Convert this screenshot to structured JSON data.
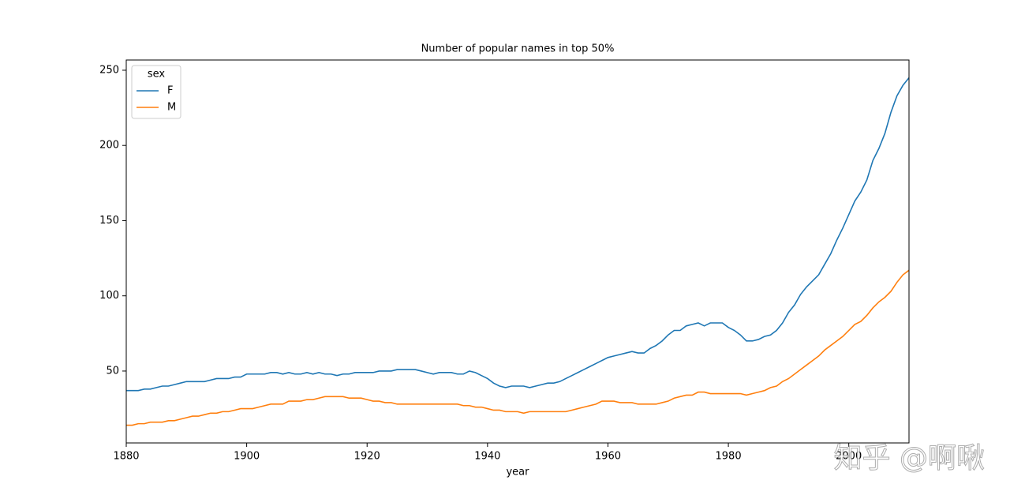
{
  "chart_data": {
    "type": "line",
    "title": "Number of popular names in top 50%",
    "x_label": "year",
    "legend_title": "sex",
    "legend_position": "upper left",
    "x": [
      1880,
      1881,
      1882,
      1883,
      1884,
      1885,
      1886,
      1887,
      1888,
      1889,
      1890,
      1891,
      1892,
      1893,
      1894,
      1895,
      1896,
      1897,
      1898,
      1899,
      1900,
      1901,
      1902,
      1903,
      1904,
      1905,
      1906,
      1907,
      1908,
      1909,
      1910,
      1911,
      1912,
      1913,
      1914,
      1915,
      1916,
      1917,
      1918,
      1919,
      1920,
      1921,
      1922,
      1923,
      1924,
      1925,
      1926,
      1927,
      1928,
      1929,
      1930,
      1931,
      1932,
      1933,
      1934,
      1935,
      1936,
      1937,
      1938,
      1939,
      1940,
      1941,
      1942,
      1943,
      1944,
      1945,
      1946,
      1947,
      1948,
      1949,
      1950,
      1951,
      1952,
      1953,
      1954,
      1955,
      1956,
      1957,
      1958,
      1959,
      1960,
      1961,
      1962,
      1963,
      1964,
      1965,
      1966,
      1967,
      1968,
      1969,
      1970,
      1971,
      1972,
      1973,
      1974,
      1975,
      1976,
      1977,
      1978,
      1979,
      1980,
      1981,
      1982,
      1983,
      1984,
      1985,
      1986,
      1987,
      1988,
      1989,
      1990,
      1991,
      1992,
      1993,
      1994,
      1995,
      1996,
      1997,
      1998,
      1999,
      2000,
      2001,
      2002,
      2003,
      2004,
      2005,
      2006,
      2007,
      2008,
      2009,
      2010
    ],
    "series": [
      {
        "name": "F",
        "color": "#1f77b4",
        "values": [
          37,
          37,
          37,
          38,
          38,
          39,
          40,
          40,
          41,
          42,
          43,
          43,
          43,
          43,
          44,
          45,
          45,
          45,
          46,
          46,
          48,
          48,
          48,
          48,
          49,
          49,
          48,
          49,
          48,
          48,
          49,
          48,
          49,
          48,
          48,
          47,
          48,
          48,
          49,
          49,
          49,
          49,
          50,
          50,
          50,
          51,
          51,
          51,
          51,
          50,
          49,
          48,
          49,
          49,
          49,
          48,
          48,
          50,
          49,
          47,
          45,
          42,
          40,
          39,
          40,
          40,
          40,
          39,
          40,
          41,
          42,
          42,
          43,
          45,
          47,
          49,
          51,
          53,
          55,
          57,
          59,
          60,
          61,
          62,
          63,
          62,
          62,
          65,
          67,
          70,
          74,
          77,
          77,
          80,
          81,
          82,
          80,
          82,
          82,
          82,
          79,
          77,
          74,
          70,
          70,
          71,
          73,
          74,
          77,
          82,
          89,
          94,
          101,
          106,
          110,
          114,
          121,
          128,
          137,
          145,
          154,
          163,
          169,
          177,
          190,
          198,
          208,
          222,
          233,
          240,
          245
        ]
      },
      {
        "name": "M",
        "color": "#ff7f0e",
        "values": [
          14,
          14,
          15,
          15,
          16,
          16,
          16,
          17,
          17,
          18,
          19,
          20,
          20,
          21,
          22,
          22,
          23,
          23,
          24,
          25,
          25,
          25,
          26,
          27,
          28,
          28,
          28,
          30,
          30,
          30,
          31,
          31,
          32,
          33,
          33,
          33,
          33,
          32,
          32,
          32,
          31,
          30,
          30,
          29,
          29,
          28,
          28,
          28,
          28,
          28,
          28,
          28,
          28,
          28,
          28,
          28,
          27,
          27,
          26,
          26,
          25,
          24,
          24,
          23,
          23,
          23,
          22,
          23,
          23,
          23,
          23,
          23,
          23,
          23,
          24,
          25,
          26,
          27,
          28,
          30,
          30,
          30,
          29,
          29,
          29,
          28,
          28,
          28,
          28,
          29,
          30,
          32,
          33,
          34,
          34,
          36,
          36,
          35,
          35,
          35,
          35,
          35,
          35,
          34,
          35,
          36,
          37,
          39,
          40,
          43,
          45,
          48,
          51,
          54,
          57,
          60,
          64,
          67,
          70,
          73,
          77,
          81,
          83,
          87,
          92,
          96,
          99,
          103,
          109,
          114,
          117
        ]
      }
    ],
    "xlim": [
      1880,
      2010
    ],
    "xticks": [
      1880,
      1900,
      1920,
      1940,
      1960,
      1980,
      2000
    ],
    "ylim": [
      2.2,
      256.8
    ],
    "yticks": [
      50,
      100,
      150,
      200,
      250
    ],
    "grid": false
  },
  "watermark": "知乎 @啊啾"
}
